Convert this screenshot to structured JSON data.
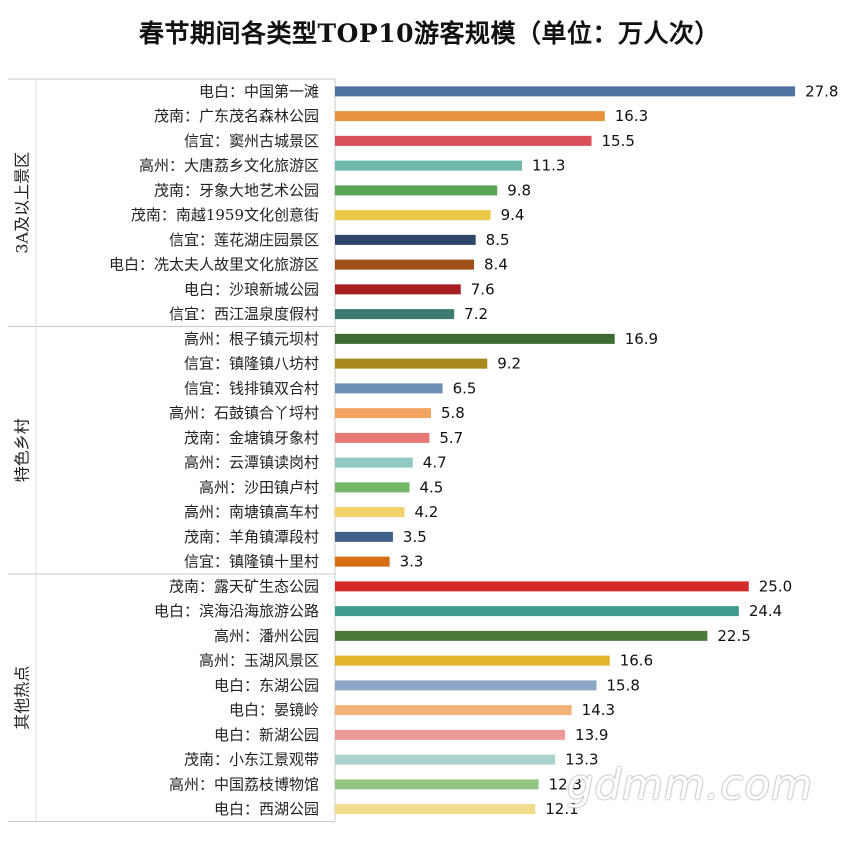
{
  "chart_data": {
    "type": "bar",
    "orientation": "horizontal",
    "title": "春节期间各类型TOP10游客规模（单位：万人次）",
    "xlabel": "",
    "ylabel": "",
    "xlim": [
      0,
      28
    ],
    "groups": [
      {
        "name": "3A及以上景区",
        "bars": [
          {
            "label": "电白：中国第一滩",
            "value": 27.8,
            "value_label": "27.8",
            "color": "#4E73A0"
          },
          {
            "label": "茂南：广东茂名森林公园",
            "value": 16.3,
            "value_label": "16.3",
            "color": "#E8933D"
          },
          {
            "label": "信宜：窦州古城景区",
            "value": 15.5,
            "value_label": "15.5",
            "color": "#D9505A"
          },
          {
            "label": "高州：大唐荔乡文化旅游区",
            "value": 11.3,
            "value_label": "11.3",
            "color": "#6FB9AA"
          },
          {
            "label": "茂南：牙象大地艺术公园",
            "value": 9.8,
            "value_label": "9.8",
            "color": "#5AA352"
          },
          {
            "label": "茂南：南越1959文化创意街",
            "value": 9.4,
            "value_label": "9.4",
            "color": "#EDC948"
          },
          {
            "label": "信宜：莲花湖庄园景区",
            "value": 8.5,
            "value_label": "8.5",
            "color": "#2E4668"
          },
          {
            "label": "电白：冼太夫人故里文化旅游区",
            "value": 8.4,
            "value_label": "8.4",
            "color": "#9E4F16"
          },
          {
            "label": "电白：沙琅新城公园",
            "value": 7.6,
            "value_label": "7.6",
            "color": "#A61F23"
          },
          {
            "label": "信宜：西江温泉度假村",
            "value": 7.2,
            "value_label": "7.2",
            "color": "#3D7A70"
          }
        ]
      },
      {
        "name": "特色乡村",
        "bars": [
          {
            "label": "高州：根子镇元坝村",
            "value": 16.9,
            "value_label": "16.9",
            "color": "#3E6B32"
          },
          {
            "label": "信宜：镇隆镇八坊村",
            "value": 9.2,
            "value_label": "9.2",
            "color": "#A88A1E"
          },
          {
            "label": "信宜：钱排镇双合村",
            "value": 6.5,
            "value_label": "6.5",
            "color": "#6E8FB5"
          },
          {
            "label": "高州：石鼓镇合丫埒村",
            "value": 5.8,
            "value_label": "5.8",
            "color": "#F4A460"
          },
          {
            "label": "茂南：金塘镇牙象村",
            "value": 5.7,
            "value_label": "5.7",
            "color": "#E87878"
          },
          {
            "label": "高州：云潭镇读岗村",
            "value": 4.7,
            "value_label": "4.7",
            "color": "#90C9C2"
          },
          {
            "label": "高州：沙田镇卢村",
            "value": 4.5,
            "value_label": "4.5",
            "color": "#72B563"
          },
          {
            "label": "高州：南塘镇高车村",
            "value": 4.2,
            "value_label": "4.2",
            "color": "#F3D26A"
          },
          {
            "label": "茂南：羊角镇潭段村",
            "value": 3.5,
            "value_label": "3.5",
            "color": "#3F5F86"
          },
          {
            "label": "信宜：镇隆镇十里村",
            "value": 3.3,
            "value_label": "3.3",
            "color": "#D56E14"
          }
        ]
      },
      {
        "name": "其他热点",
        "bars": [
          {
            "label": "茂南：露天矿生态公园",
            "value": 25.0,
            "value_label": "25.0",
            "color": "#D42A2A"
          },
          {
            "label": "电白：滨海沿海旅游公路",
            "value": 24.4,
            "value_label": "24.4",
            "color": "#3E9A8B"
          },
          {
            "label": "高州：潘州公园",
            "value": 22.5,
            "value_label": "22.5",
            "color": "#4A7A3A"
          },
          {
            "label": "高州：玉湖风景区",
            "value": 16.6,
            "value_label": "16.6",
            "color": "#E2B52A"
          },
          {
            "label": "电白：东湖公园",
            "value": 15.8,
            "value_label": "15.8",
            "color": "#8FA7C6"
          },
          {
            "label": "电白：晏镜岭",
            "value": 14.3,
            "value_label": "14.3",
            "color": "#F2B27C"
          },
          {
            "label": "电白：新湖公园",
            "value": 13.9,
            "value_label": "13.9",
            "color": "#EE9A9A"
          },
          {
            "label": "茂南：小东江景观带",
            "value": 13.3,
            "value_label": "13.3",
            "color": "#A9D3CF"
          },
          {
            "label": "高州：中国荔枝博物馆",
            "value": 12.3,
            "value_label": "12.3",
            "color": "#92C682"
          },
          {
            "label": "电白：西湖公园",
            "value": 12.1,
            "value_label": "12.1",
            "color": "#F0DC8C"
          }
        ]
      }
    ]
  },
  "watermark": "gdmm.com"
}
